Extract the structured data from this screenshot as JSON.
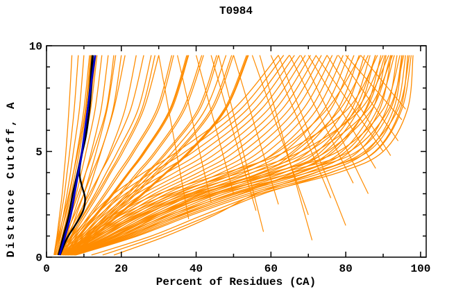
{
  "chart_data": {
    "type": "line",
    "title": "T0984",
    "xlabel": "Percent of Residues (CA)",
    "ylabel": "Distance Cutoff, A",
    "xlim": [
      0,
      101.5
    ],
    "ylim": [
      0,
      10
    ],
    "x_major_ticks": [
      0,
      20,
      40,
      60,
      80,
      100
    ],
    "x_minor_step": 10,
    "y_major_ticks": [
      0,
      5,
      10
    ],
    "y_minor_step": 1,
    "grid": "off",
    "legend": "none",
    "colors": {
      "orange": "#FF8C00",
      "blue": "#0000CD",
      "black": "#000000",
      "frame": "#000000",
      "background": "#FFFFFF"
    },
    "y_grid": [
      0.1,
      1,
      2,
      3,
      4,
      5,
      7,
      9.55
    ],
    "series": {
      "orange": [
        [
          2.0,
          2.8,
          3.5,
          4.2,
          4.7,
          5.2,
          6.0,
          6.8
        ],
        [
          2.2,
          3.0,
          3.9,
          4.8,
          5.5,
          6.2,
          7.4,
          8.5
        ],
        [
          2.5,
          3.4,
          4.5,
          5.5,
          6.4,
          7.2,
          8.8,
          10.0
        ],
        [
          2.8,
          3.8,
          5.0,
          6.2,
          7.2,
          8.2,
          10.0,
          11.5
        ],
        [
          3.0,
          4.2,
          5.6,
          7.0,
          8.2,
          9.3,
          11.4,
          13.2
        ],
        [
          2.4,
          3.6,
          5.2,
          6.6,
          7.7,
          8.8,
          10.6,
          12.0
        ],
        [
          3.4,
          4.8,
          6.4,
          8.0,
          9.3,
          10.6,
          13.0,
          14.8
        ],
        [
          3.8,
          5.4,
          7.2,
          9.0,
          10.5,
          12.0,
          14.6,
          16.5
        ],
        [
          4.2,
          6.0,
          8.0,
          10.0,
          11.7,
          13.3,
          16.2,
          18.5
        ],
        [
          4.6,
          6.6,
          8.8,
          11.0,
          12.8,
          14.6,
          17.8,
          20.0
        ],
        [
          2.1,
          3.2,
          4.6,
          6.0,
          7.2,
          8.4,
          10.4,
          11.8
        ],
        [
          3.2,
          4.4,
          5.8,
          7.2,
          8.4,
          9.6,
          11.8,
          13.5
        ],
        [
          3.0,
          4.5,
          6.5,
          8.5,
          10.5,
          12.5,
          16.0,
          18.0
        ],
        [
          3.5,
          5.0,
          7.5,
          10.0,
          12.2,
          14.5,
          18.0,
          21.0
        ],
        [
          4.0,
          6.0,
          9.0,
          12.0,
          14.5,
          17.0,
          21.0,
          24.0
        ],
        [
          3.2,
          5.5,
          8.5,
          11.5,
          14.5,
          17.5,
          22.5,
          26.0
        ],
        [
          4.5,
          7.0,
          10.5,
          14.0,
          17.2,
          20.5,
          26.0,
          30.0
        ],
        [
          3.8,
          6.5,
          10.0,
          13.5,
          16.8,
          20.0,
          25.5,
          29.0
        ],
        [
          5.0,
          8.0,
          12.0,
          16.0,
          19.8,
          23.5,
          30.0,
          34.0
        ],
        [
          4.2,
          7.5,
          11.5,
          15.5,
          19.2,
          23.0,
          29.5,
          33.5
        ],
        [
          5.5,
          9.0,
          13.5,
          18.0,
          22.2,
          26.5,
          33.5,
          38.0
        ],
        [
          4.8,
          8.5,
          13.0,
          17.5,
          21.8,
          26.0,
          33.0,
          37.5
        ],
        [
          6.0,
          10.0,
          15.0,
          20.0,
          24.8,
          29.5,
          37.0,
          42.0
        ],
        [
          5.2,
          9.5,
          14.5,
          19.5,
          24.2,
          29.0,
          36.5,
          41.5
        ],
        [
          6.5,
          11.0,
          16.5,
          22.0,
          27.2,
          32.5,
          41.0,
          46.0
        ],
        [
          5.8,
          10.5,
          16.0,
          21.5,
          26.8,
          32.0,
          40.5,
          45.5
        ],
        [
          7.0,
          12.0,
          18.0,
          24.0,
          29.8,
          35.5,
          44.5,
          50.0
        ],
        [
          6.2,
          11.5,
          17.5,
          23.5,
          29.2,
          35.0,
          44.0,
          49.5
        ],
        [
          7.5,
          13.0,
          19.5,
          26.0,
          32.2,
          38.5,
          48.0,
          54.0
        ],
        [
          6.8,
          12.5,
          19.0,
          25.5,
          31.8,
          38.0,
          47.5,
          53.5
        ],
        [
          4.4,
          6.8,
          9.8,
          13.0,
          16.0,
          19.0,
          24.5,
          28.0
        ],
        [
          5.4,
          8.8,
          13.2,
          17.8,
          22.0,
          26.2,
          33.2,
          37.8
        ],
        [
          6.4,
          11.2,
          17.0,
          22.8,
          28.2,
          33.8,
          42.5,
          48.0
        ],
        [
          7.2,
          12.6,
          19.2,
          25.8,
          32.0,
          38.2,
          47.8,
          53.8
        ],
        [
          12.0,
          28.0,
          42.0,
          57.0,
          78.0,
          90.0,
          96.5,
          98.0
        ],
        [
          15.0,
          30.0,
          44.0,
          58.0,
          76.0,
          88.0,
          95.0,
          97.5
        ],
        [
          18.0,
          32.0,
          45.0,
          56.0,
          72.0,
          85.0,
          94.0,
          97.0
        ],
        [
          7.8,
          24.3,
          38.9,
          55.4,
          75.9,
          87.8,
          94.6,
          96.6
        ],
        [
          7.6,
          23.6,
          37.8,
          53.9,
          73.8,
          85.6,
          92.8,
          95.1
        ],
        [
          7.4,
          22.8,
          36.6,
          52.3,
          71.8,
          83.4,
          90.9,
          93.7
        ],
        [
          7.2,
          22.1,
          35.5,
          50.8,
          69.7,
          81.2,
          89.1,
          92.2
        ],
        [
          7.0,
          21.4,
          34.4,
          49.2,
          67.6,
          79.0,
          87.2,
          90.8
        ],
        [
          6.8,
          20.7,
          33.3,
          47.6,
          65.5,
          76.8,
          85.3,
          89.4
        ],
        [
          6.6,
          20.0,
          32.2,
          46.1,
          63.4,
          74.6,
          83.5,
          87.9
        ],
        [
          6.4,
          19.2,
          31.0,
          44.5,
          61.4,
          72.4,
          81.6,
          86.5
        ],
        [
          6.2,
          18.5,
          29.9,
          43.0,
          59.3,
          70.2,
          79.8,
          85.0
        ],
        [
          6.0,
          17.8,
          28.8,
          41.4,
          57.2,
          68.0,
          77.9,
          83.6
        ],
        [
          5.8,
          17.1,
          27.7,
          39.8,
          55.1,
          65.8,
          76.0,
          82.2
        ],
        [
          5.6,
          16.4,
          26.6,
          38.3,
          53.0,
          63.6,
          74.2,
          80.7
        ],
        [
          5.4,
          15.6,
          25.4,
          36.7,
          51.0,
          61.4,
          72.3,
          79.3
        ],
        [
          5.2,
          14.9,
          24.3,
          35.2,
          48.9,
          59.2,
          70.5,
          77.8
        ],
        [
          5.0,
          14.2,
          23.2,
          33.6,
          46.8,
          57.0,
          68.6,
          76.4
        ],
        [
          4.8,
          13.5,
          22.1,
          32.0,
          44.7,
          54.8,
          66.7,
          75.0
        ],
        [
          4.6,
          12.8,
          21.0,
          30.5,
          42.6,
          52.6,
          64.9,
          73.5
        ],
        [
          4.4,
          12.0,
          19.8,
          28.9,
          40.6,
          50.4,
          63.0,
          72.1
        ],
        [
          4.2,
          11.3,
          18.7,
          27.4,
          38.5,
          48.2,
          61.2,
          70.6
        ],
        [
          4.0,
          10.6,
          17.6,
          25.8,
          36.4,
          46.0,
          59.3,
          69.2
        ],
        [
          3.8,
          9.9,
          16.5,
          24.2,
          34.3,
          43.8,
          57.4,
          67.8
        ],
        [
          3.6,
          9.2,
          15.4,
          22.7,
          32.2,
          41.6,
          55.6,
          66.3
        ],
        [
          3.4,
          8.4,
          14.2,
          21.1,
          30.2,
          39.4,
          53.7,
          64.9
        ],
        [
          3.2,
          7.7,
          13.1,
          19.6,
          28.1,
          37.2,
          51.9,
          63.4
        ],
        [
          3.0,
          7.0,
          12.0,
          18.0,
          26.0,
          35.0,
          50.0,
          62.0
        ],
        [
          5.0,
          18.0,
          30.0,
          46.0,
          70.0,
          86.0,
          93.5,
          96.0
        ],
        [
          6.0,
          15.0,
          26.0,
          40.0,
          63.0,
          81.0,
          91.5,
          95.5
        ],
        [
          4.5,
          13.0,
          24.0,
          38.0,
          60.0,
          78.0,
          90.0,
          94.5
        ],
        [
          7.5,
          20.0,
          30.0,
          42.0,
          58.0,
          72.0,
          86.0,
          92.5
        ],
        [
          5.5,
          16.5,
          28.5,
          44.0,
          66.0,
          83.0,
          92.0,
          95.0
        ],
        [
          4.0,
          11.0,
          20.0,
          33.0,
          52.0,
          68.0,
          84.0,
          91.5
        ],
        [
          6.5,
          19.0,
          33.0,
          50.0,
          68.0,
          80.0,
          88.5,
          93.0
        ],
        [
          3.8,
          10.0,
          18.0,
          30.0,
          48.0,
          64.0,
          80.5,
          88.5
        ],
        [
          5.2,
          14.0,
          25.5,
          41.0,
          61.0,
          75.0,
          87.0,
          92.0
        ],
        [
          4.6,
          12.5,
          22.5,
          36.0,
          55.0,
          70.0,
          83.0,
          90.0
        ],
        [
          6.8,
          21.0,
          36.0,
          52.0,
          66.0,
          76.0,
          85.5,
          90.5
        ],
        [
          4.3,
          11.8,
          21.5,
          34.5,
          50.0,
          62.0,
          75.0,
          84.0
        ],
        [
          5.7,
          17.0,
          29.5,
          45.0,
          63.5,
          73.5,
          82.5,
          88.0
        ],
        [
          4.9,
          13.8,
          24.8,
          39.0,
          57.5,
          66.5,
          78.5,
          86.0
        ]
      ],
      "orange_segments": [
        [
          [
            50,
            9.55
          ],
          [
            62,
            2.5
          ]
        ],
        [
          [
            55,
            9.55
          ],
          [
            70,
            2.0
          ]
        ],
        [
          [
            60,
            9.55
          ],
          [
            76,
            2.8
          ]
        ],
        [
          [
            65,
            9.55
          ],
          [
            82,
            3.5
          ]
        ],
        [
          [
            70,
            9.55
          ],
          [
            88,
            4.2
          ]
        ],
        [
          [
            75,
            9.55
          ],
          [
            92,
            4.8
          ]
        ],
        [
          [
            57,
            9.55
          ],
          [
            71,
            0.8
          ]
        ],
        [
          [
            62,
            9.55
          ],
          [
            80,
            1.5
          ]
        ],
        [
          [
            46,
            9.55
          ],
          [
            58,
            1.2
          ]
        ],
        [
          [
            68,
            9.55
          ],
          [
            86,
            3.0
          ]
        ],
        [
          [
            72,
            9.55
          ],
          [
            90,
            5.0
          ]
        ],
        [
          [
            78,
            9.55
          ],
          [
            94,
            5.5
          ]
        ],
        [
          [
            80,
            9.55
          ],
          [
            95,
            6.5
          ]
        ],
        [
          [
            84,
            9.55
          ],
          [
            96,
            7.0
          ]
        ],
        [
          [
            40,
            9.55
          ],
          [
            50,
            3.0
          ]
        ],
        [
          [
            44,
            9.55
          ],
          [
            56,
            2.2
          ]
        ],
        [
          [
            35,
            9.55
          ],
          [
            44,
            2.6
          ]
        ],
        [
          [
            30,
            9.55
          ],
          [
            38,
            1.8
          ]
        ]
      ],
      "black": [
        [
          [
            3.2,
            0.1
          ],
          [
            4.5,
            1
          ],
          [
            6.0,
            2
          ],
          [
            7.0,
            3
          ],
          [
            8.3,
            4
          ],
          [
            9.5,
            5
          ],
          [
            10.4,
            6
          ],
          [
            11.0,
            7
          ],
          [
            11.6,
            8
          ],
          [
            12.0,
            9
          ],
          [
            12.3,
            9.55
          ]
        ],
        [
          [
            3.6,
            0.1
          ],
          [
            5.5,
            0.9
          ],
          [
            8.0,
            1.6
          ],
          [
            9.8,
            2.2
          ],
          [
            10.3,
            2.8
          ],
          [
            9.4,
            3.4
          ],
          [
            8.8,
            4.0
          ],
          [
            9.4,
            4.8
          ],
          [
            10.4,
            5.6
          ],
          [
            11.1,
            6.4
          ],
          [
            11.7,
            7.4
          ],
          [
            12.1,
            8.4
          ],
          [
            12.4,
            9.55
          ]
        ]
      ],
      "blue": [
        3.5,
        5.0,
        6.5,
        7.5,
        8.5,
        9.5,
        11.0,
        13.0
      ]
    }
  }
}
